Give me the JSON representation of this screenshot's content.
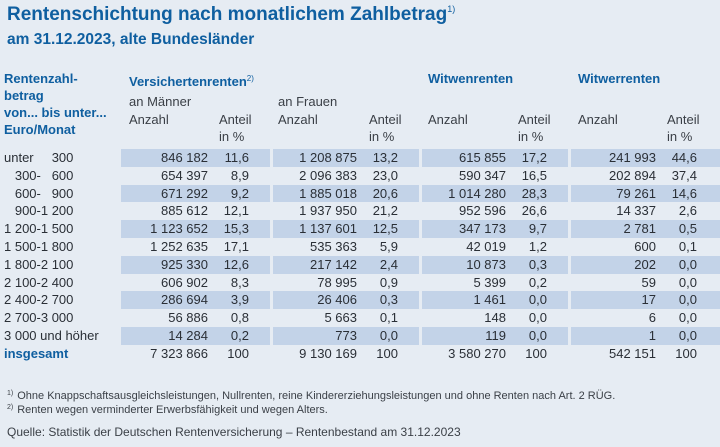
{
  "title": "Rentenschichtung nach monatlichem Zahlbetrag",
  "title_note": "1)",
  "subtitle": "am 31.12.2023, alte Bundesländer",
  "header": {
    "row_label": [
      "Rentenzahl-",
      "betrag",
      "von... bis unter...",
      "Euro/Monat"
    ],
    "versicherten": "Versichertenrenten",
    "versicherten_note": "2)",
    "maenner": "an Männer",
    "frauen": "an Frauen",
    "witwen": "Witwenrenten",
    "witwer": "Witwerrenten",
    "anzahl": "Anzahl",
    "anteil": "Anteil",
    "in_prozent": "in %"
  },
  "rows": [
    {
      "label": "unter     300",
      "cells": [
        "846 182",
        "11,6",
        "1 208 875",
        "13,2",
        "615 855",
        "17,2",
        "241 993",
        "44,6"
      ]
    },
    {
      "label": "   300-   600",
      "cells": [
        "654 397",
        "8,9",
        "2 096 383",
        "23,0",
        "590 347",
        "16,5",
        "202 894",
        "37,4"
      ]
    },
    {
      "label": "   600-   900",
      "cells": [
        "671 292",
        "9,2",
        "1 885 018",
        "20,6",
        "1 014 280",
        "28,3",
        "79 261",
        "14,6"
      ]
    },
    {
      "label": "   900-1 200",
      "cells": [
        "885 612",
        "12,1",
        "1 937 950",
        "21,2",
        "952 596",
        "26,6",
        "14 337",
        "2,6"
      ]
    },
    {
      "label": "1 200-1 500",
      "cells": [
        "1 123 652",
        "15,3",
        "1 137 601",
        "12,5",
        "347 173",
        "9,7",
        "2 781",
        "0,5"
      ]
    },
    {
      "label": "1 500-1 800",
      "cells": [
        "1 252 635",
        "17,1",
        "535 363",
        "5,9",
        "42 019",
        "1,2",
        "600",
        "0,1"
      ]
    },
    {
      "label": "1 800-2 100",
      "cells": [
        "925 330",
        "12,6",
        "217 142",
        "2,4",
        "10 873",
        "0,3",
        "202",
        "0,0"
      ]
    },
    {
      "label": "2 100-2 400",
      "cells": [
        "606 902",
        "8,3",
        "78 995",
        "0,9",
        "5 399",
        "0,2",
        "59",
        "0,0"
      ]
    },
    {
      "label": "2 400-2 700",
      "cells": [
        "286 694",
        "3,9",
        "26 406",
        "0,3",
        "1 461",
        "0,0",
        "17",
        "0,0"
      ]
    },
    {
      "label": "2 700-3 000",
      "cells": [
        "56 886",
        "0,8",
        "5 663",
        "0,1",
        "148",
        "0,0",
        "6",
        "0,0"
      ]
    },
    {
      "label": "3 000 und höher",
      "cells": [
        "14 284",
        "0,2",
        "773",
        "0,0",
        "119",
        "0,0",
        "1",
        "0,0"
      ]
    },
    {
      "label": "insgesamt",
      "cells": [
        "7 323 866",
        "100",
        "9 130 169",
        "100",
        "3 580 270",
        "100",
        "542 151",
        "100"
      ]
    }
  ],
  "footnotes": [
    {
      "mark": "1)",
      "text": "Ohne Knappschaftsausgleichsleistungen, Nullrenten, reine Kindererziehungsleistungen und ohne Renten nach Art. 2 RÜG."
    },
    {
      "mark": "2)",
      "text": "Renten wegen verminderter Erwerbsfähigkeit und wegen Alters."
    }
  ],
  "source": "Quelle: Statistik der Deutschen Rentenversicherung – Rentenbestand am 31.12.2023"
}
